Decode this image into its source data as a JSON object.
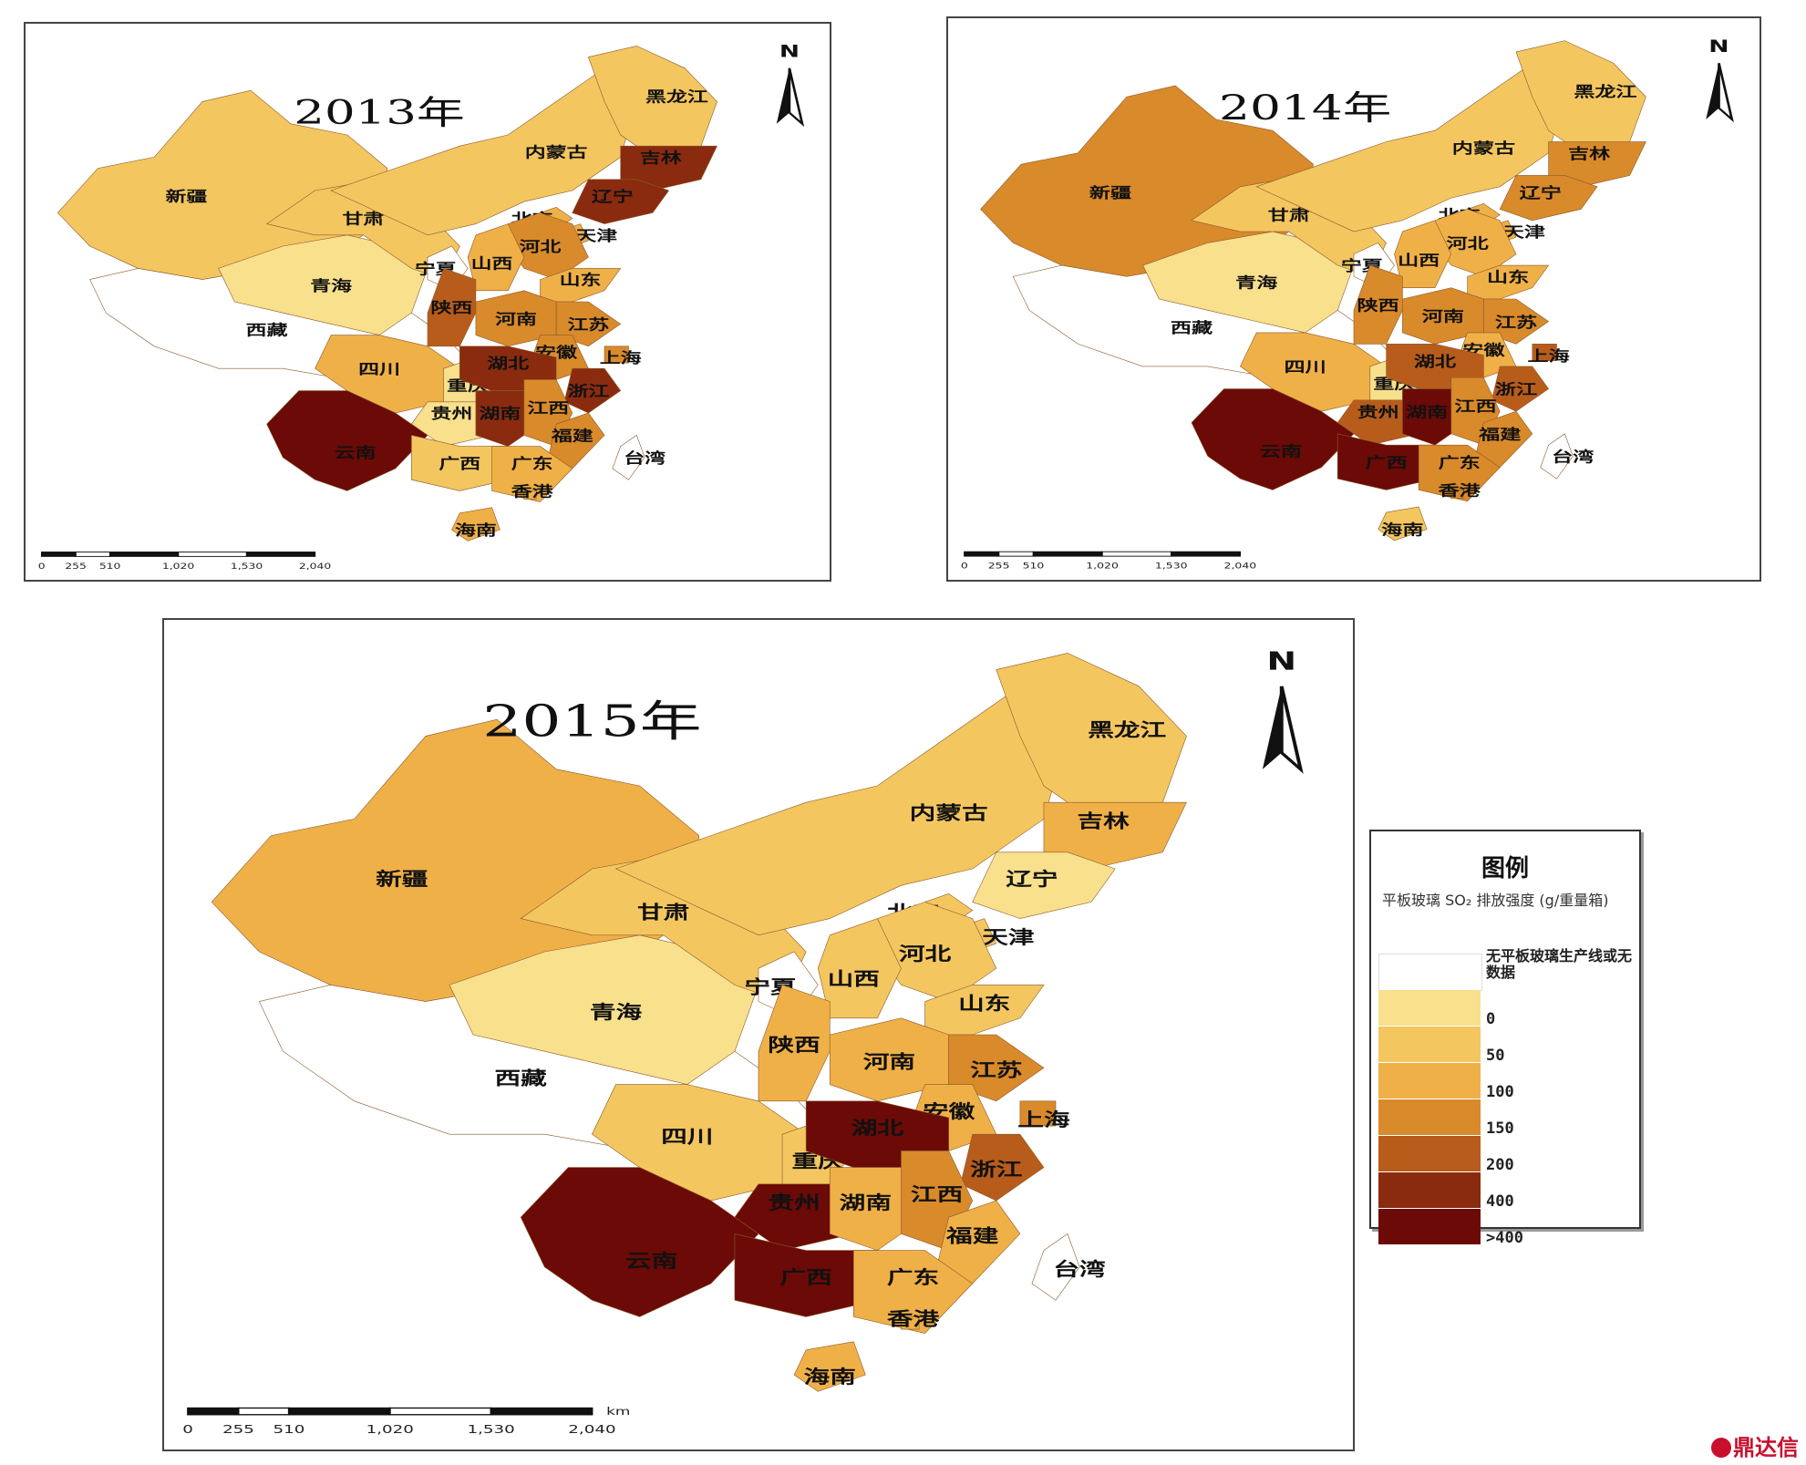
{
  "colors": {
    "no_data": "#ffffff",
    "c0": "#f8e08c",
    "c50": "#f4c660",
    "c100": "#f0b048",
    "c150": "#d98a2b",
    "c200": "#b85c1c",
    "c400": "#8a2b0f",
    "c_gt400": "#6b0a06",
    "boundary": "#8a5a2a"
  },
  "maps": [
    {
      "id": "2013",
      "title": "2013年",
      "north_label": "N",
      "scale_ticks": [
        "0",
        "255",
        "510",
        "1,020",
        "1,530",
        "2,040"
      ],
      "provinces": {
        "xinjiang": {
          "label": "新疆",
          "class": "c50"
        },
        "xizang": {
          "label": "西藏",
          "class": "no_data"
        },
        "qinghai": {
          "label": "青海",
          "class": "c0"
        },
        "gansu": {
          "label": "甘肃",
          "class": "c50"
        },
        "neimenggu": {
          "label": "内蒙古",
          "class": "c50"
        },
        "heilongjiang": {
          "label": "黑龙江",
          "class": "c50"
        },
        "jilin": {
          "label": "吉林",
          "class": "c400"
        },
        "liaoning": {
          "label": "辽宁",
          "class": "c400"
        },
        "beijing": {
          "label": "北京",
          "class": "c100"
        },
        "tianjin": {
          "label": "天津",
          "class": "c100"
        },
        "hebei": {
          "label": "河北",
          "class": "c150"
        },
        "shanxi": {
          "label": "山西",
          "class": "c100"
        },
        "shandong": {
          "label": "山东",
          "class": "c100"
        },
        "ningxia": {
          "label": "宁夏",
          "class": "no_data"
        },
        "shaanxi": {
          "label": "陕西",
          "class": "c200"
        },
        "henan": {
          "label": "河南",
          "class": "c150"
        },
        "jiangsu": {
          "label": "江苏",
          "class": "c150"
        },
        "anhui": {
          "label": "安徽",
          "class": "c150"
        },
        "shanghai": {
          "label": "上海",
          "class": "c150"
        },
        "sichuan": {
          "label": "四川",
          "class": "c100"
        },
        "chongqing": {
          "label": "重庆",
          "class": "c0"
        },
        "hubei": {
          "label": "湖北",
          "class": "c400"
        },
        "zhejiang": {
          "label": "浙江",
          "class": "c400"
        },
        "guizhou": {
          "label": "贵州",
          "class": "c0"
        },
        "hunan": {
          "label": "湖南",
          "class": "c400"
        },
        "jiangxi": {
          "label": "江西",
          "class": "c150"
        },
        "fujian": {
          "label": "福建",
          "class": "c150"
        },
        "yunnan": {
          "label": "云南",
          "class": "c_gt400"
        },
        "guangxi": {
          "label": "广西",
          "class": "c50"
        },
        "guangdong": {
          "label": "广东",
          "class": "c100"
        },
        "xianggang": {
          "label": "香港",
          "class": "c100"
        },
        "taiwan": {
          "label": "台湾",
          "class": "no_data"
        },
        "hainan": {
          "label": "海南",
          "class": "c100"
        }
      }
    },
    {
      "id": "2014",
      "title": "2014年",
      "north_label": "N",
      "scale_ticks": [
        "0",
        "255",
        "510",
        "1,020",
        "1,530",
        "2,040"
      ],
      "provinces": {
        "xinjiang": {
          "label": "新疆",
          "class": "c150"
        },
        "xizang": {
          "label": "西藏",
          "class": "no_data"
        },
        "qinghai": {
          "label": "青海",
          "class": "c0"
        },
        "gansu": {
          "label": "甘肃",
          "class": "c50"
        },
        "neimenggu": {
          "label": "内蒙古",
          "class": "c50"
        },
        "heilongjiang": {
          "label": "黑龙江",
          "class": "c50"
        },
        "jilin": {
          "label": "吉林",
          "class": "c150"
        },
        "liaoning": {
          "label": "辽宁",
          "class": "c150"
        },
        "beijing": {
          "label": "北京",
          "class": "c100"
        },
        "tianjin": {
          "label": "天津",
          "class": "c100"
        },
        "hebei": {
          "label": "河北",
          "class": "c100"
        },
        "shanxi": {
          "label": "山西",
          "class": "c100"
        },
        "shandong": {
          "label": "山东",
          "class": "c100"
        },
        "ningxia": {
          "label": "宁夏",
          "class": "no_data"
        },
        "shaanxi": {
          "label": "陕西",
          "class": "c150"
        },
        "henan": {
          "label": "河南",
          "class": "c150"
        },
        "jiangsu": {
          "label": "江苏",
          "class": "c150"
        },
        "anhui": {
          "label": "安徽",
          "class": "c100"
        },
        "shanghai": {
          "label": "上海",
          "class": "c200"
        },
        "sichuan": {
          "label": "四川",
          "class": "c100"
        },
        "chongqing": {
          "label": "重庆",
          "class": "c0"
        },
        "hubei": {
          "label": "湖北",
          "class": "c200"
        },
        "zhejiang": {
          "label": "浙江",
          "class": "c200"
        },
        "guizhou": {
          "label": "贵州",
          "class": "c200"
        },
        "hunan": {
          "label": "湖南",
          "class": "c_gt400"
        },
        "jiangxi": {
          "label": "江西",
          "class": "c150"
        },
        "fujian": {
          "label": "福建",
          "class": "c150"
        },
        "yunnan": {
          "label": "云南",
          "class": "c_gt400"
        },
        "guangxi": {
          "label": "广西",
          "class": "c_gt400"
        },
        "guangdong": {
          "label": "广东",
          "class": "c150"
        },
        "xianggang": {
          "label": "香港",
          "class": "c150"
        },
        "taiwan": {
          "label": "台湾",
          "class": "no_data"
        },
        "hainan": {
          "label": "海南",
          "class": "c50"
        }
      }
    },
    {
      "id": "2015",
      "title": "2015年",
      "north_label": "N",
      "scale_ticks": [
        "0",
        "255",
        "510",
        "1,020",
        "1,530",
        "2,040"
      ],
      "scale_unit": "km",
      "provinces": {
        "xinjiang": {
          "label": "新疆",
          "class": "c100"
        },
        "xizang": {
          "label": "西藏",
          "class": "no_data"
        },
        "qinghai": {
          "label": "青海",
          "class": "c0"
        },
        "gansu": {
          "label": "甘肃",
          "class": "c50"
        },
        "neimenggu": {
          "label": "内蒙古",
          "class": "c50"
        },
        "heilongjiang": {
          "label": "黑龙江",
          "class": "c50"
        },
        "jilin": {
          "label": "吉林",
          "class": "c100"
        },
        "liaoning": {
          "label": "辽宁",
          "class": "c0"
        },
        "beijing": {
          "label": "北京",
          "class": "c50"
        },
        "tianjin": {
          "label": "天津",
          "class": "c50"
        },
        "hebei": {
          "label": "河北",
          "class": "c50"
        },
        "shanxi": {
          "label": "山西",
          "class": "c50"
        },
        "shandong": {
          "label": "山东",
          "class": "c50"
        },
        "ningxia": {
          "label": "宁夏",
          "class": "no_data"
        },
        "shaanxi": {
          "label": "陕西",
          "class": "c100"
        },
        "henan": {
          "label": "河南",
          "class": "c100"
        },
        "jiangsu": {
          "label": "江苏",
          "class": "c150"
        },
        "anhui": {
          "label": "安徽",
          "class": "c100"
        },
        "shanghai": {
          "label": "上海",
          "class": "c150"
        },
        "sichuan": {
          "label": "四川",
          "class": "c50"
        },
        "chongqing": {
          "label": "重庆",
          "class": "c50"
        },
        "hubei": {
          "label": "湖北",
          "class": "c_gt400"
        },
        "zhejiang": {
          "label": "浙江",
          "class": "c200"
        },
        "guizhou": {
          "label": "贵州",
          "class": "c_gt400"
        },
        "hunan": {
          "label": "湖南",
          "class": "c100"
        },
        "jiangxi": {
          "label": "江西",
          "class": "c150"
        },
        "fujian": {
          "label": "福建",
          "class": "c100"
        },
        "yunnan": {
          "label": "云南",
          "class": "c_gt400"
        },
        "guangxi": {
          "label": "广西",
          "class": "c_gt400"
        },
        "guangdong": {
          "label": "广东",
          "class": "c100"
        },
        "xianggang": {
          "label": "香港",
          "class": "c100"
        },
        "taiwan": {
          "label": "台湾",
          "class": "no_data"
        },
        "hainan": {
          "label": "海南",
          "class": "c100"
        }
      }
    }
  ],
  "legend": {
    "title": "图例",
    "subtitle": "平板玻璃 SO₂ 排放强度 (g/重量箱)",
    "items": [
      {
        "label": "无平板玻璃生产线或无数据",
        "class": "no_data"
      },
      {
        "label": "0",
        "class": "c0"
      },
      {
        "label": "50",
        "class": "c50"
      },
      {
        "label": "100",
        "class": "c100"
      },
      {
        "label": "150",
        "class": "c150"
      },
      {
        "label": "200",
        "class": "c200"
      },
      {
        "label": "400",
        "class": "c400"
      },
      {
        "label": ">400",
        "class": "c_gt400"
      }
    ]
  },
  "watermark": "鼎达信"
}
